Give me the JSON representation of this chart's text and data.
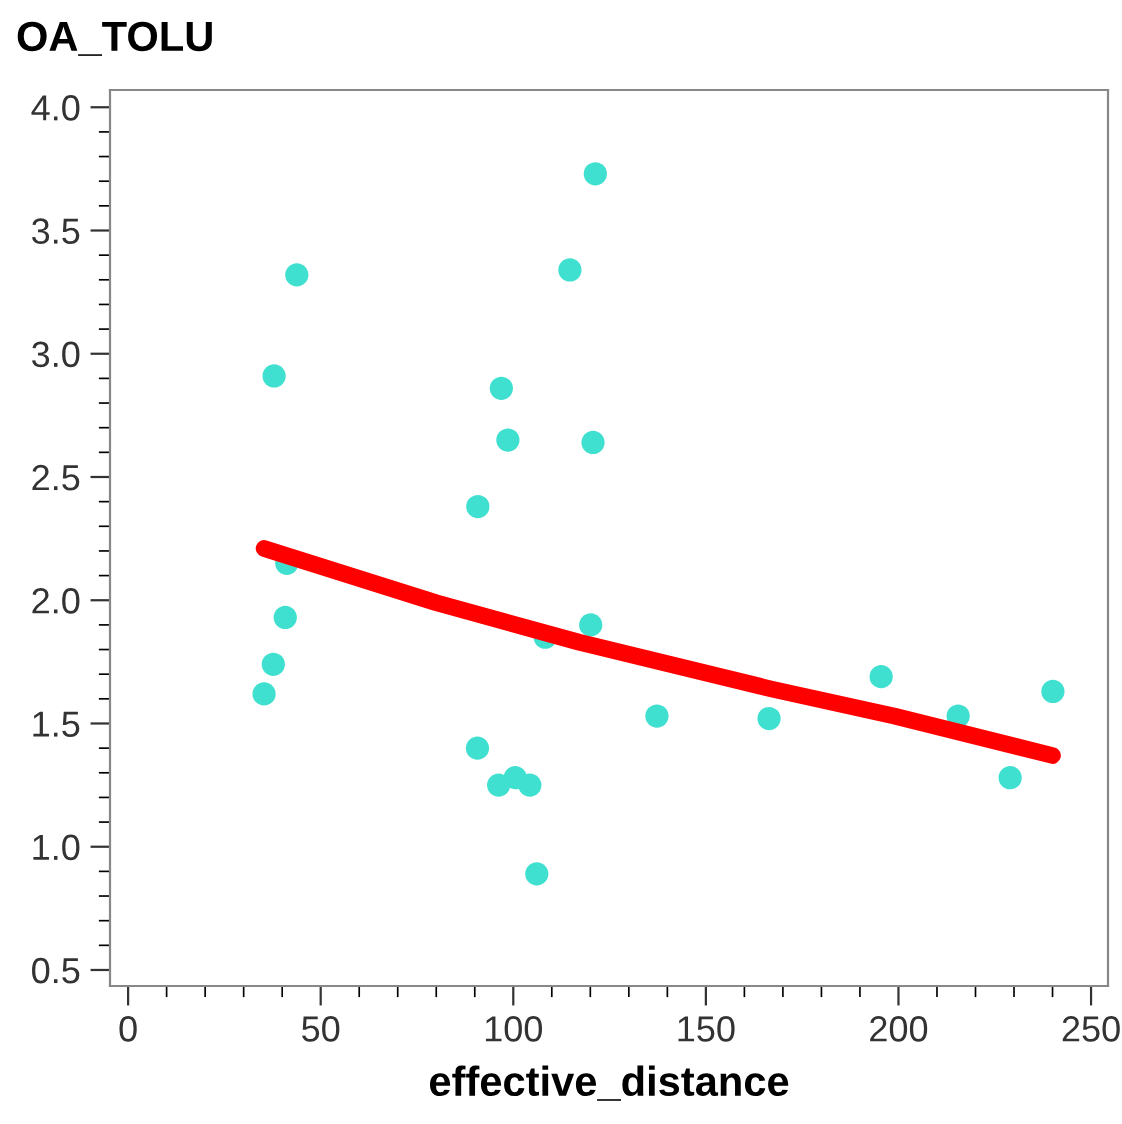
{
  "chart_data": {
    "type": "scatter",
    "ylabel": "OA_TOLU",
    "xlabel": "effective_distance",
    "xlim": [
      -4.7,
      254.4
    ],
    "ylim": [
      0.435,
      4.07
    ],
    "xticks": [
      0,
      50,
      100,
      150,
      200,
      250
    ],
    "yticks": [
      {
        "value": 0.5,
        "label": "0.5"
      },
      {
        "value": 1.0,
        "label": "1.0"
      },
      {
        "value": 1.5,
        "label": "1.5"
      },
      {
        "value": 2.0,
        "label": "2.0"
      },
      {
        "value": 2.5,
        "label": "2.5"
      },
      {
        "value": 3.0,
        "label": "3.0"
      },
      {
        "value": 3.5,
        "label": "3.5"
      },
      {
        "value": 4.0,
        "label": "4.0"
      }
    ],
    "grid": false,
    "legend": false,
    "series": [
      {
        "color": "#40e0d0",
        "marker": "circle",
        "x": [
          43.8,
          37.9,
          41.2,
          40.8,
          37.7,
          35.3,
          90.8,
          96.9,
          98.6,
          90.7,
          96.2,
          100.5,
          104.3,
          106.1,
          108.3,
          114.7,
          121.3,
          120.7,
          120.1,
          137.3,
          166.4,
          195.5,
          215.5,
          229.0,
          240.1
        ],
        "values": [
          3.32,
          2.91,
          2.15,
          1.93,
          1.74,
          1.62,
          2.38,
          2.86,
          2.65,
          1.4,
          1.25,
          1.28,
          1.25,
          0.89,
          1.85,
          3.34,
          3.73,
          2.64,
          1.9,
          1.53,
          1.52,
          1.69,
          1.53,
          1.28,
          1.63
        ]
      },
      {
        "type": "line",
        "color": "#ff0000",
        "marker": "none",
        "line_style": "solid",
        "x": [
          35.3,
          80,
          117,
          167,
          199,
          240
        ],
        "values": [
          2.21,
          1.99,
          1.83,
          1.64,
          1.53,
          1.37
        ]
      }
    ]
  }
}
